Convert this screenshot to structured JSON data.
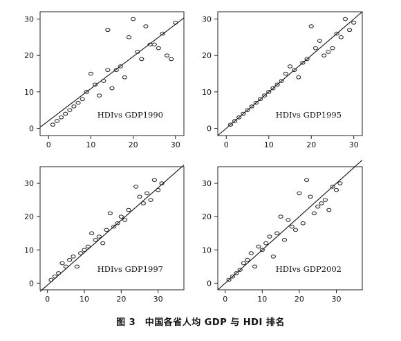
{
  "caption": "图 3　中国各省人均 GDP 与 HDI 排名",
  "chart_data": [
    {
      "type": "scatter",
      "label": "HDIvs GDP1990",
      "xlim": [
        -2,
        32
      ],
      "ylim": [
        -2,
        32
      ],
      "xticks": [
        0,
        10,
        20,
        30
      ],
      "yticks": [
        0,
        10,
        20,
        30
      ],
      "fit_line": [
        [
          -2,
          0.3
        ],
        [
          32,
          30.3
        ]
      ],
      "points": [
        [
          1,
          1
        ],
        [
          2,
          2
        ],
        [
          3,
          3
        ],
        [
          4,
          4
        ],
        [
          5,
          5
        ],
        [
          6,
          6
        ],
        [
          7,
          7
        ],
        [
          8,
          8
        ],
        [
          9,
          10
        ],
        [
          10,
          15
        ],
        [
          11,
          12
        ],
        [
          12,
          9
        ],
        [
          13,
          13
        ],
        [
          14,
          16
        ],
        [
          14,
          27
        ],
        [
          15,
          11
        ],
        [
          16,
          16
        ],
        [
          17,
          17
        ],
        [
          18,
          14
        ],
        [
          19,
          25
        ],
        [
          20,
          30
        ],
        [
          21,
          21
        ],
        [
          22,
          19
        ],
        [
          23,
          28
        ],
        [
          24,
          23
        ],
        [
          25,
          23
        ],
        [
          26,
          22
        ],
        [
          27,
          26
        ],
        [
          28,
          20
        ],
        [
          29,
          19
        ],
        [
          30,
          29
        ]
      ]
    },
    {
      "type": "scatter",
      "label": "HDIvs GDP1995",
      "xlim": [
        -2,
        32
      ],
      "ylim": [
        -2,
        32
      ],
      "xticks": [
        0,
        10,
        20,
        30
      ],
      "yticks": [
        0,
        10,
        20,
        30
      ],
      "fit_line": [
        [
          -2,
          -2
        ],
        [
          32,
          32
        ]
      ],
      "points": [
        [
          1,
          1
        ],
        [
          2,
          2
        ],
        [
          3,
          3
        ],
        [
          4,
          4
        ],
        [
          5,
          5
        ],
        [
          6,
          6
        ],
        [
          7,
          7
        ],
        [
          8,
          8
        ],
        [
          9,
          9
        ],
        [
          10,
          10
        ],
        [
          11,
          11
        ],
        [
          12,
          12
        ],
        [
          13,
          13
        ],
        [
          14,
          15
        ],
        [
          15,
          17
        ],
        [
          16,
          16
        ],
        [
          17,
          14
        ],
        [
          18,
          18
        ],
        [
          19,
          19
        ],
        [
          20,
          28
        ],
        [
          21,
          22
        ],
        [
          22,
          24
        ],
        [
          23,
          20
        ],
        [
          24,
          21
        ],
        [
          25,
          22
        ],
        [
          26,
          26
        ],
        [
          27,
          25
        ],
        [
          28,
          30
        ],
        [
          29,
          27
        ],
        [
          30,
          29
        ]
      ]
    },
    {
      "type": "scatter",
      "label": "HDIvs GDP1997",
      "xlim": [
        -2,
        37
      ],
      "ylim": [
        -2,
        35
      ],
      "xticks": [
        0,
        10,
        20,
        30
      ],
      "yticks": [
        0,
        10,
        20,
        30
      ],
      "fit_line": [
        [
          -2,
          -2.5
        ],
        [
          37,
          35.5
        ]
      ],
      "points": [
        [
          1,
          1
        ],
        [
          2,
          2
        ],
        [
          3,
          3
        ],
        [
          4,
          6
        ],
        [
          5,
          5
        ],
        [
          6,
          7
        ],
        [
          7,
          8
        ],
        [
          8,
          5
        ],
        [
          9,
          9
        ],
        [
          10,
          10
        ],
        [
          11,
          11
        ],
        [
          12,
          15
        ],
        [
          13,
          13
        ],
        [
          14,
          14
        ],
        [
          15,
          12
        ],
        [
          16,
          16
        ],
        [
          17,
          21
        ],
        [
          18,
          17
        ],
        [
          19,
          18
        ],
        [
          20,
          20
        ],
        [
          21,
          19
        ],
        [
          22,
          22
        ],
        [
          24,
          29
        ],
        [
          25,
          26
        ],
        [
          26,
          24
        ],
        [
          27,
          27
        ],
        [
          28,
          25
        ],
        [
          29,
          31
        ],
        [
          30,
          28
        ],
        [
          31,
          30
        ]
      ]
    },
    {
      "type": "scatter",
      "label": "HDIvs GDP2002",
      "xlim": [
        -2,
        37
      ],
      "ylim": [
        -2,
        35
      ],
      "xticks": [
        0,
        10,
        20,
        30
      ],
      "yticks": [
        0,
        10,
        20,
        30
      ],
      "fit_line": [
        [
          -2,
          -2
        ],
        [
          37,
          37
        ]
      ],
      "points": [
        [
          1,
          1
        ],
        [
          2,
          2
        ],
        [
          3,
          3
        ],
        [
          4,
          4
        ],
        [
          5,
          6
        ],
        [
          6,
          7
        ],
        [
          7,
          9
        ],
        [
          8,
          5
        ],
        [
          9,
          11
        ],
        [
          10,
          10
        ],
        [
          11,
          12
        ],
        [
          12,
          14
        ],
        [
          13,
          8
        ],
        [
          14,
          15
        ],
        [
          15,
          20
        ],
        [
          16,
          13
        ],
        [
          17,
          19
        ],
        [
          18,
          17
        ],
        [
          19,
          16
        ],
        [
          20,
          27
        ],
        [
          21,
          18
        ],
        [
          22,
          31
        ],
        [
          23,
          26
        ],
        [
          24,
          21
        ],
        [
          25,
          23
        ],
        [
          26,
          24
        ],
        [
          27,
          25
        ],
        [
          28,
          22
        ],
        [
          29,
          29
        ],
        [
          30,
          28
        ],
        [
          31,
          30
        ]
      ]
    }
  ]
}
